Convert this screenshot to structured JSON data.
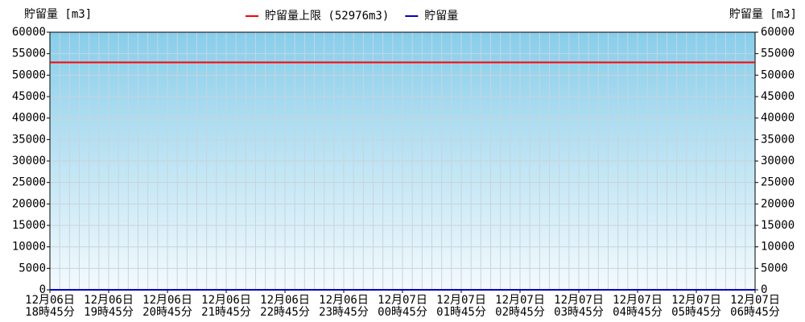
{
  "chart_data": {
    "type": "line",
    "y_label": "貯留量 [m3]",
    "y2_label": "貯留量 [m3]",
    "categories": [
      [
        "12月06日",
        "18時45分"
      ],
      [
        "12月06日",
        "19時45分"
      ],
      [
        "12月06日",
        "20時45分"
      ],
      [
        "12月06日",
        "21時45分"
      ],
      [
        "12月06日",
        "22時45分"
      ],
      [
        "12月06日",
        "23時45分"
      ],
      [
        "12月07日",
        "00時45分"
      ],
      [
        "12月07日",
        "01時45分"
      ],
      [
        "12月07日",
        "02時45分"
      ],
      [
        "12月07日",
        "03時45分"
      ],
      [
        "12月07日",
        "04時45分"
      ],
      [
        "12月07日",
        "05時45分"
      ],
      [
        "12月07日",
        "06時45分"
      ]
    ],
    "series": [
      {
        "name": "貯留量上限 (52976m3)",
        "color": "#ff0000",
        "values": [
          52976,
          52976,
          52976,
          52976,
          52976,
          52976,
          52976,
          52976,
          52976,
          52976,
          52976,
          52976,
          52976
        ]
      },
      {
        "name": "貯留量",
        "color": "#0000cc",
        "values": [
          0,
          0,
          0,
          0,
          0,
          0,
          0,
          0,
          0,
          0,
          0,
          0,
          0
        ]
      }
    ],
    "ylim": [
      0,
      60000
    ],
    "yticks": [
      0,
      5000,
      10000,
      15000,
      20000,
      25000,
      30000,
      35000,
      40000,
      45000,
      50000,
      55000,
      60000
    ],
    "y2lim": [
      0,
      60000
    ],
    "y2ticks": [
      0,
      5000,
      10000,
      15000,
      20000,
      25000,
      30000,
      35000,
      40000,
      45000,
      50000,
      55000,
      60000
    ],
    "grid": true
  }
}
